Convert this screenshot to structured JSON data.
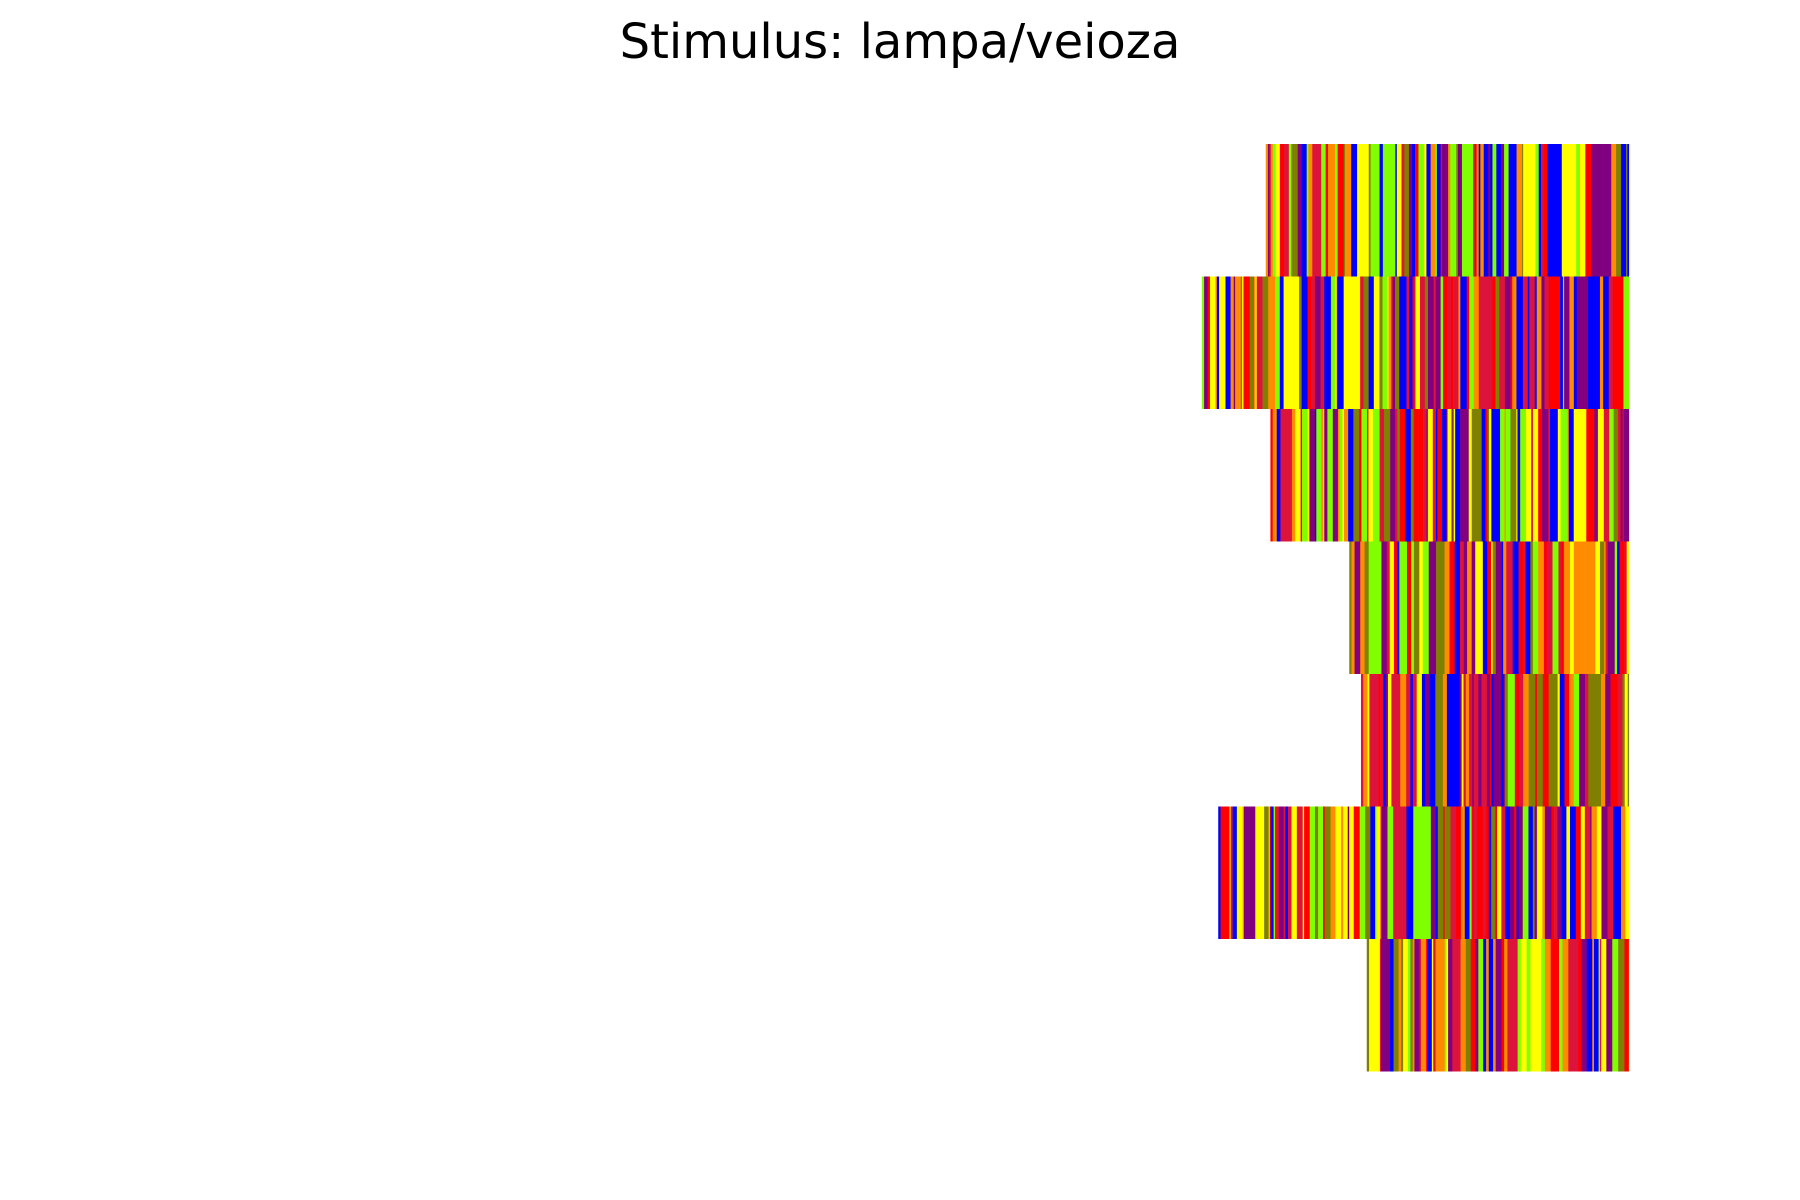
{
  "chart_data": {
    "type": "heatmap",
    "title": "Stimulus: lampa/veioza",
    "xlabel": "",
    "ylabel": "",
    "grid": false,
    "axes_visible": false,
    "colors": [
      "#dc143c",
      "#ff0000",
      "#ff8c00",
      "#ffff00",
      "#7fff00",
      "#0000ff",
      "#800080",
      "#808000"
    ],
    "rows": [
      {
        "start_fraction": 0.7032,
        "end_fraction": 0.9049,
        "seed": 11
      },
      {
        "start_fraction": 0.6677,
        "end_fraction": 0.9049,
        "seed": 23
      },
      {
        "start_fraction": 0.7058,
        "end_fraction": 0.9049,
        "seed": 37
      },
      {
        "start_fraction": 0.7496,
        "end_fraction": 0.9049,
        "seed": 41
      },
      {
        "start_fraction": 0.7561,
        "end_fraction": 0.9049,
        "seed": 53
      },
      {
        "start_fraction": 0.6768,
        "end_fraction": 0.9049,
        "seed": 67
      },
      {
        "start_fraction": 0.7593,
        "end_fraction": 0.9049,
        "seed": 79
      }
    ]
  }
}
